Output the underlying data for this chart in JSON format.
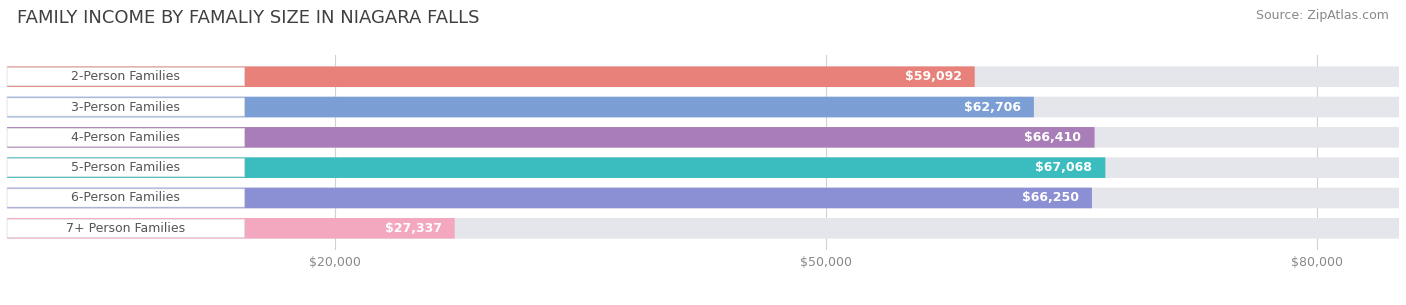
{
  "title": "FAMILY INCOME BY FAMALIY SIZE IN NIAGARA FALLS",
  "source": "Source: ZipAtlas.com",
  "categories": [
    "2-Person Families",
    "3-Person Families",
    "4-Person Families",
    "5-Person Families",
    "6-Person Families",
    "7+ Person Families"
  ],
  "values": [
    59092,
    62706,
    66410,
    67068,
    66250,
    27337
  ],
  "labels": [
    "$59,092",
    "$62,706",
    "$66,410",
    "$67,068",
    "$66,250",
    "$27,337"
  ],
  "bar_colors": [
    "#E8817A",
    "#7B9FD4",
    "#A87DB8",
    "#3BBCBE",
    "#8B8FD4",
    "#F4A8C0"
  ],
  "bar_bg_color": "#E5E5EC",
  "background_color": "#FFFFFF",
  "xlim": [
    0,
    85000
  ],
  "xticks": [
    20000,
    50000,
    80000
  ],
  "xticklabels": [
    "$20,000",
    "$50,000",
    "$80,000"
  ],
  "title_fontsize": 13,
  "source_fontsize": 9,
  "label_fontsize": 9,
  "cat_fontsize": 9,
  "bar_height": 0.68,
  "bar_label_color": "#FFFFFF",
  "category_label_color": "#555555",
  "grid_color": "#CCCCCC",
  "value_outside_color": "#888888"
}
